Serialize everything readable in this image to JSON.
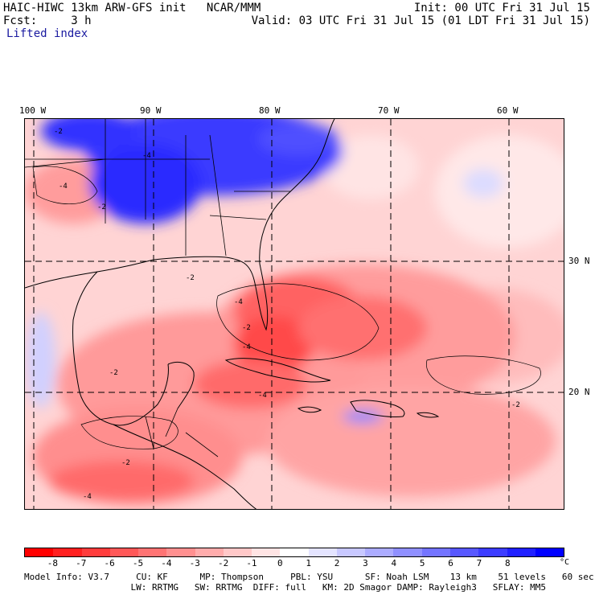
{
  "header": {
    "model_title": "HAIC-HIWC 13km ARW-GFS init   NCAR/MMM",
    "init_time": "Init: 00 UTC Fri 31 Jul 15",
    "forecast_label": "Fcst:     3 h",
    "valid_time": "Valid: 03 UTC Fri 31 Jul 15 (01 LDT Fri 31 Jul 15)",
    "field_name": "Lifted index"
  },
  "map": {
    "longitude_labels": [
      "100 W",
      "90 W",
      "80 W",
      "70 W",
      "60 W"
    ],
    "latitude_labels": [
      "30 N",
      "20 N"
    ],
    "contour_labels": [
      "-2",
      "-4",
      "-2",
      "-4",
      "-2",
      "-4",
      "-2",
      "-4",
      "-4",
      "-2",
      "-2",
      "-4",
      "-2"
    ]
  },
  "colorbar": {
    "labels": [
      "-8",
      "-7",
      "-6",
      "-5",
      "-4",
      "-3",
      "-2",
      "-1",
      "0",
      "1",
      "2",
      "3",
      "4",
      "5",
      "6",
      "7",
      "8"
    ],
    "unit": "°C",
    "colors": [
      "#ff0000",
      "#ff2020",
      "#ff3c3c",
      "#ff5858",
      "#ff7474",
      "#ff9090",
      "#ffacac",
      "#ffc8c8",
      "#ffe4e4",
      "#ffffff",
      "#e4e4ff",
      "#c8c8ff",
      "#acacff",
      "#9090ff",
      "#7474ff",
      "#5858ff",
      "#3c3cff",
      "#2020ff",
      "#0000ff"
    ]
  },
  "footer": {
    "line1": "Model Info: V3.7     CU: KF      MP: Thompson     PBL: YSU      SF: Noah LSM    13 km    51 levels   60 sec",
    "line2": "                    LW: RRTMG   SW: RRTMG  DIFF: full   KM: 2D Smagor DAMP: Rayleigh3   SFLAY: MM5"
  }
}
